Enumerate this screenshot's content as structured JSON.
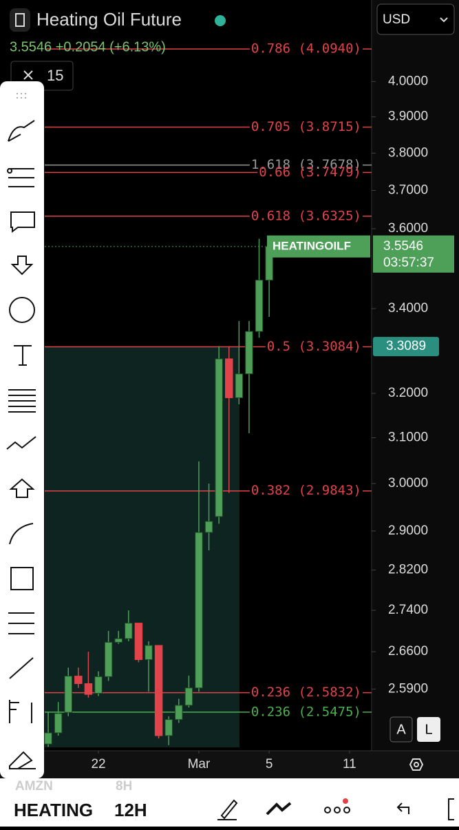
{
  "header": {
    "title": "Heating Oil Future",
    "quote": "3.5546 +0.2054 (+6.13%)",
    "interval_count": "15",
    "currency": "USD"
  },
  "chart_data": {
    "type": "candlestick",
    "log_scale": true,
    "xlim": [
      -4.8,
      32.2
    ],
    "ylim": [
      2.478,
      4.24
    ],
    "yticks": [
      {
        "value": 4,
        "label": "4.0000"
      },
      {
        "value": 3.9,
        "label": "3.9000"
      },
      {
        "value": 3.8,
        "label": "3.8000"
      },
      {
        "value": 3.7,
        "label": "3.7000"
      },
      {
        "value": 3.6,
        "label": "3.6000"
      },
      {
        "value": 3.4,
        "label": "3.4000"
      },
      {
        "value": 3.2,
        "label": "3.2000"
      },
      {
        "value": 3.1,
        "label": "3.1000"
      },
      {
        "value": 3,
        "label": "3.0000"
      },
      {
        "value": 2.9,
        "label": "2.9000"
      },
      {
        "value": 2.82,
        "label": "2.8200"
      },
      {
        "value": 2.74,
        "label": "2.7400"
      },
      {
        "value": 2.66,
        "label": "2.6600"
      },
      {
        "value": 2.59,
        "label": "2.5900"
      }
    ],
    "xticks": [
      {
        "value": 5,
        "label": "22"
      },
      {
        "value": 15,
        "label": "Mar"
      },
      {
        "value": 22,
        "label": "5"
      },
      {
        "value": 30,
        "label": "11"
      }
    ],
    "x": [
      0,
      1,
      2,
      3,
      4,
      5,
      6,
      7,
      8,
      9,
      10,
      11,
      12,
      13,
      14,
      15,
      16,
      17,
      18,
      19,
      20,
      21,
      22
    ],
    "open": [
      2.49,
      2.51,
      2.547,
      2.614,
      2.6,
      2.582,
      2.613,
      2.678,
      2.685,
      2.715,
      2.645,
      2.672,
      2.505,
      2.534,
      2.56,
      2.592,
      2.897,
      2.93,
      3.28,
      3.19,
      3.245,
      3.345,
      3.47
    ],
    "high": [
      2.547,
      2.566,
      2.63,
      2.63,
      2.66,
      2.623,
      2.7,
      2.7,
      2.74,
      2.715,
      2.68,
      2.672,
      2.54,
      2.572,
      2.615,
      3.048,
      3.0,
      3.31,
      3.31,
      3.37,
      3.37,
      3.574,
      3.574
    ],
    "low": [
      2.485,
      2.505,
      2.54,
      2.592,
      2.574,
      2.577,
      2.605,
      2.675,
      2.68,
      2.64,
      2.585,
      2.5,
      2.488,
      2.528,
      2.556,
      2.585,
      2.86,
      2.915,
      2.98,
      3.175,
      3.11,
      3.33,
      3.38
    ],
    "close": [
      2.51,
      2.545,
      2.614,
      2.6,
      2.58,
      2.613,
      2.678,
      2.685,
      2.715,
      2.645,
      2.672,
      2.505,
      2.534,
      2.56,
      2.592,
      2.897,
      2.92,
      3.28,
      3.19,
      3.245,
      3.345,
      3.47,
      3.5546
    ],
    "up_color": "#4e9f58",
    "down_color": "#e0434a",
    "levels": [
      {
        "value": 4.094,
        "label": "0.786 (4.0940)",
        "color": "#e0434a"
      },
      {
        "value": 3.8715,
        "label": "0.705 (3.8715)",
        "color": "#e0434a"
      },
      {
        "value": 3.7678,
        "label": "1.618 (3.7678)",
        "color": "#9a9a9a"
      },
      {
        "value": 3.7479,
        "label": "0.66 (3.7479)",
        "color": "#e0434a"
      },
      {
        "value": 3.6325,
        "label": "0.618 (3.6325)",
        "color": "#e0434a"
      },
      {
        "value": 3.3084,
        "label": "0.5 (3.3084)",
        "color": "#e0434a"
      },
      {
        "value": 2.9843,
        "label": "0.382 (2.9843)",
        "color": "#e0434a"
      },
      {
        "value": 2.5832,
        "label": "0.236 (2.5832)",
        "color": "#e0434a"
      },
      {
        "value": 2.5475,
        "label": "0.236 (2.5475)",
        "color": "#4caf50"
      }
    ],
    "last_price": {
      "symbol": "HEATINGOILF",
      "value": 3.5546,
      "countdown": "03:57:37"
    },
    "crosshair_price": 3.3089
  },
  "scale_buttons": [
    "A",
    "L"
  ],
  "footer": {
    "prev_symbol": "AMZN",
    "prev_interval": "8H",
    "symbol": "HEATING",
    "interval": "12H"
  }
}
